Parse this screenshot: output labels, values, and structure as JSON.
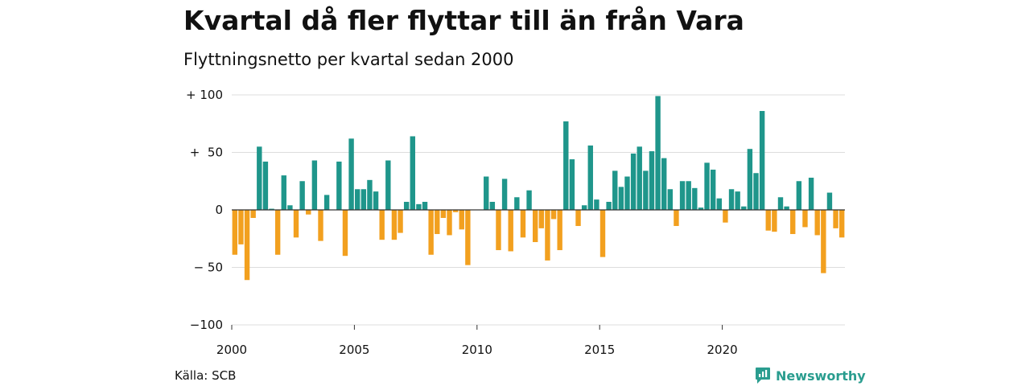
{
  "title": "Kvartal då fler flyttar till än från Vara",
  "subtitle": "Flyttningsnetto per kvartal sedan 2000",
  "source": "Källa: SCB",
  "brand": "Newsworthy",
  "colors": {
    "positive": "#1f968b",
    "negative": "#f2a01f",
    "grid": "#dddddd",
    "axis": "#333333"
  },
  "chart_data": {
    "type": "bar",
    "title": "Kvartal då fler flyttar till än från Vara",
    "subtitle": "Flyttningsnetto per kvartal sedan 2000",
    "xlabel": "",
    "ylabel": "",
    "ylim": [
      -100,
      100
    ],
    "y_ticks": [
      100,
      50,
      0,
      -50,
      -100
    ],
    "y_tick_labels": [
      "+ 100",
      "+  50",
      "0",
      "− 50",
      "−100"
    ],
    "x_ticks": [
      2000,
      2005,
      2010,
      2015,
      2020
    ],
    "x_tick_labels": [
      "2000",
      "2005",
      "2010",
      "2015",
      "2020"
    ],
    "grid": true,
    "categories": [
      "2000Q1",
      "2000Q2",
      "2000Q3",
      "2000Q4",
      "2001Q1",
      "2001Q2",
      "2001Q3",
      "2001Q4",
      "2002Q1",
      "2002Q2",
      "2002Q3",
      "2002Q4",
      "2003Q1",
      "2003Q2",
      "2003Q3",
      "2003Q4",
      "2004Q1",
      "2004Q2",
      "2004Q3",
      "2004Q4",
      "2005Q1",
      "2005Q2",
      "2005Q3",
      "2005Q4",
      "2006Q1",
      "2006Q2",
      "2006Q3",
      "2006Q4",
      "2007Q1",
      "2007Q2",
      "2007Q3",
      "2007Q4",
      "2008Q1",
      "2008Q2",
      "2008Q3",
      "2008Q4",
      "2009Q1",
      "2009Q2",
      "2009Q3",
      "2009Q4",
      "2010Q1",
      "2010Q2",
      "2010Q3",
      "2010Q4",
      "2011Q1",
      "2011Q2",
      "2011Q3",
      "2011Q4",
      "2012Q1",
      "2012Q2",
      "2012Q3",
      "2012Q4",
      "2013Q1",
      "2013Q2",
      "2013Q3",
      "2013Q4",
      "2014Q1",
      "2014Q2",
      "2014Q3",
      "2014Q4",
      "2015Q1",
      "2015Q2",
      "2015Q3",
      "2015Q4",
      "2016Q1",
      "2016Q2",
      "2016Q3",
      "2016Q4",
      "2017Q1",
      "2017Q2",
      "2017Q3",
      "2017Q4",
      "2018Q1",
      "2018Q2",
      "2018Q3",
      "2018Q4",
      "2019Q1",
      "2019Q2",
      "2019Q3",
      "2019Q4",
      "2020Q1",
      "2020Q2",
      "2020Q3",
      "2020Q4",
      "2021Q1",
      "2021Q2",
      "2021Q3",
      "2021Q4",
      "2022Q1",
      "2022Q2",
      "2022Q3",
      "2022Q4",
      "2023Q1",
      "2023Q2",
      "2023Q3",
      "2023Q4",
      "2024Q1",
      "2024Q2",
      "2024Q3",
      "2024Q4"
    ],
    "values": [
      -39,
      -30,
      -61,
      -7,
      55,
      42,
      1,
      -39,
      30,
      4,
      -24,
      25,
      -4,
      43,
      -27,
      13,
      0,
      42,
      -40,
      62,
      18,
      18,
      26,
      16,
      -26,
      43,
      -26,
      -20,
      7,
      64,
      5,
      7,
      -39,
      -21,
      -7,
      -22,
      -2,
      -17,
      -48,
      0,
      0,
      29,
      7,
      -35,
      27,
      -36,
      11,
      -24,
      17,
      -28,
      -16,
      -44,
      -8,
      -35,
      77,
      44,
      -14,
      4,
      56,
      9,
      -41,
      7,
      34,
      20,
      29,
      49,
      55,
      34,
      51,
      99,
      45,
      18,
      -14,
      25,
      25,
      19,
      2,
      41,
      35,
      10,
      -11,
      18,
      16,
      3,
      53,
      32,
      86,
      -18,
      -19,
      11,
      3,
      -21,
      25,
      -15,
      28,
      -22,
      -55,
      15,
      -16,
      -24
    ]
  }
}
